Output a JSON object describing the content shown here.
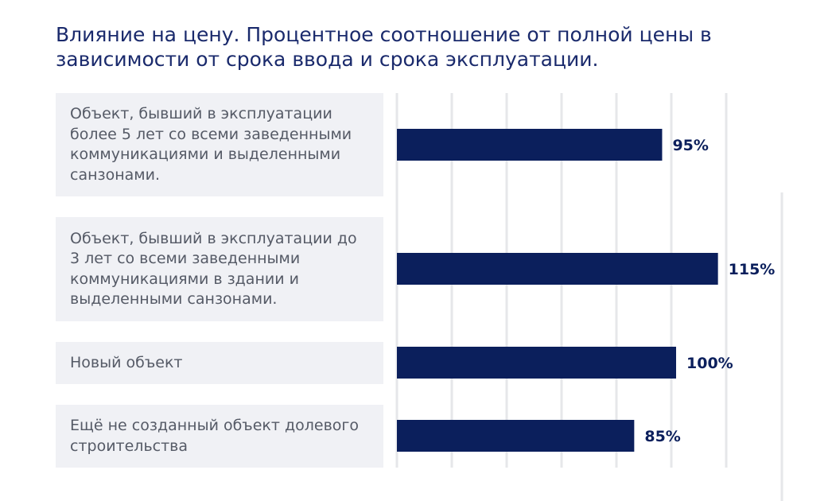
{
  "chart_data": {
    "type": "bar",
    "orientation": "horizontal",
    "title": "Влияние на цену. Процентное соотношение от полной цены в зависимости от срока ввода и срока эксплуатации.",
    "categories": [
      "Объект, бывший в эксплуатации более 5 лет со всеми заведенными коммуникациями и выделенными санзонами.",
      "Объект, бывший в эксплуатации до 3 лет со всеми заведенными коммуникациями в здании и выделенными санзонами.",
      "Новый объект",
      "Ещё не созданный объект долевого строительства"
    ],
    "values": [
      95,
      115,
      100,
      85
    ],
    "value_labels": [
      "95%",
      "115%",
      "100%",
      "85%"
    ],
    "xlim": [
      0,
      130
    ],
    "grid": true,
    "bar_color": "#0b1f5c",
    "label_background": "#f0f1f5",
    "gridline_color": "#e6e7ea"
  }
}
